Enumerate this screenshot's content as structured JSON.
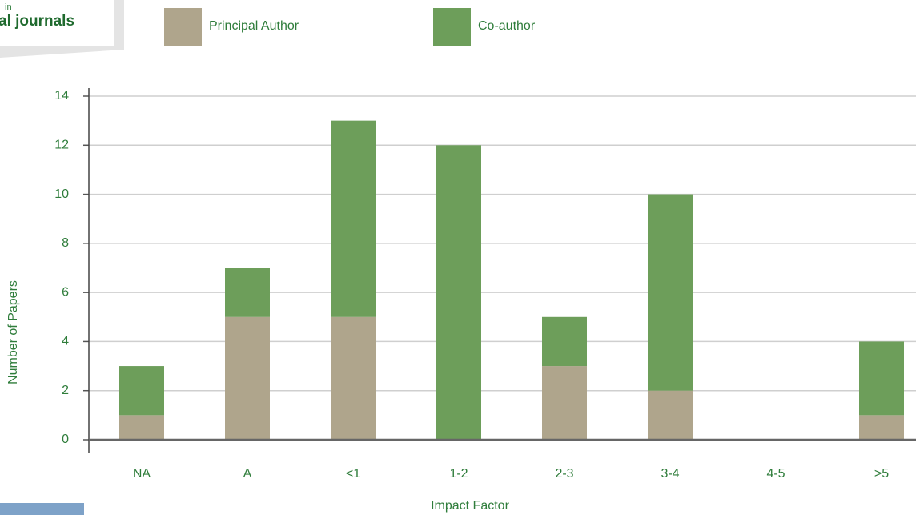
{
  "chart_data": {
    "type": "stacked_bar",
    "header_small": "in",
    "header_title": "al journals",
    "categories": [
      "NA",
      "A",
      "<1",
      "1-2",
      "2-3",
      "3-4",
      "4-5",
      ">5"
    ],
    "series": [
      {
        "name": "Principal Author",
        "color": "#afa58c",
        "values": [
          1,
          5,
          5,
          0,
          3,
          2,
          0,
          1
        ]
      },
      {
        "name": "Co-author",
        "color": "#6d9e5a",
        "values": [
          2,
          2,
          8,
          12,
          2,
          8,
          0,
          3
        ]
      }
    ],
    "xlabel": "Impact Factor",
    "ylabel": "Number of Papers",
    "ylim": [
      0,
      14
    ],
    "yticks": [
      0,
      2,
      4,
      6,
      8,
      10,
      12,
      14
    ],
    "grid": true
  }
}
